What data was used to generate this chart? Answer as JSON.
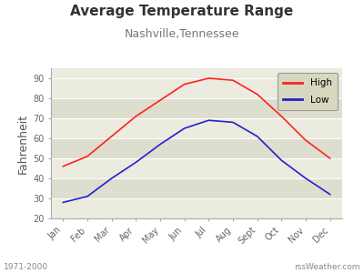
{
  "title": "Average Temperature Range",
  "subtitle": "Nashville,Tennessee",
  "ylabel": "Fahrenheit",
  "months": [
    "Jan",
    "Feb",
    "Mar",
    "Apr",
    "May",
    "Jun",
    "Jul",
    "Aug",
    "Sept",
    "Oct",
    "Nov",
    "Dec"
  ],
  "high_temps": [
    46,
    51,
    61,
    71,
    79,
    87,
    90,
    89,
    82,
    71,
    59,
    50
  ],
  "low_temps": [
    28,
    31,
    40,
    48,
    57,
    65,
    69,
    68,
    61,
    49,
    40,
    32
  ],
  "high_color": "#ff2222",
  "low_color": "#2222cc",
  "bg_color": "#ffffff",
  "plot_bg_light": "#ebebdf",
  "plot_bg_dark": "#dedecf",
  "legend_bg": "#d8d8c0",
  "ylim": [
    20,
    95
  ],
  "yticks": [
    20,
    30,
    40,
    50,
    60,
    70,
    80,
    90
  ],
  "footer_left": "1971-2000",
  "footer_right": "rssWeather.com",
  "title_fontsize": 11,
  "subtitle_fontsize": 9,
  "axis_fontsize": 7,
  "ylabel_fontsize": 9,
  "line_width": 1.2
}
